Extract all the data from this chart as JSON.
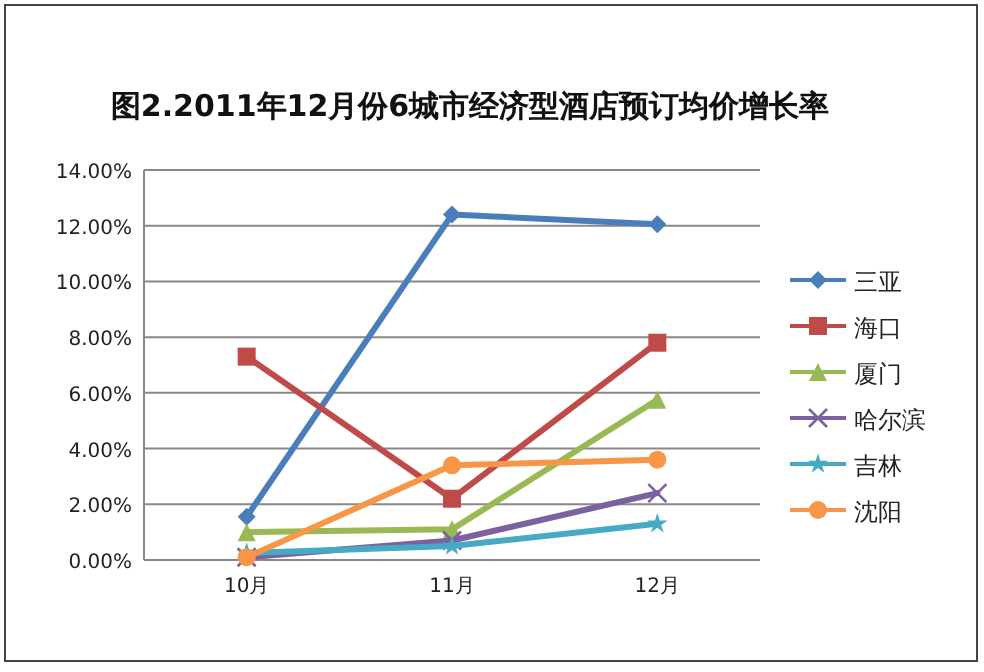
{
  "chart_data": {
    "type": "line",
    "title": "图2.2011年12月份6城市经济型酒店预订均价增长率",
    "categories": [
      "10月",
      "11月",
      "12月"
    ],
    "series": [
      {
        "name": "三亚",
        "color": "#4a7ebb",
        "marker": "diamond",
        "values": [
          1.55,
          12.4,
          12.05
        ]
      },
      {
        "name": "海口",
        "color": "#be4b48",
        "marker": "square",
        "values": [
          7.3,
          2.2,
          7.8
        ]
      },
      {
        "name": "厦门",
        "color": "#98b954",
        "marker": "triangle",
        "values": [
          1.0,
          1.1,
          5.75
        ]
      },
      {
        "name": "哈尔滨",
        "color": "#7d60a0",
        "marker": "cross",
        "values": [
          0.1,
          0.7,
          2.4
        ]
      },
      {
        "name": "吉林",
        "color": "#46aac5",
        "marker": "star",
        "values": [
          0.25,
          0.5,
          1.3
        ]
      },
      {
        "name": "沈阳",
        "color": "#f79646",
        "marker": "circle",
        "values": [
          0.1,
          3.4,
          3.6
        ]
      }
    ],
    "ylim": [
      0,
      14
    ],
    "yticks": [
      {
        "value": 0,
        "label": "0.00%"
      },
      {
        "value": 2,
        "label": "2.00%"
      },
      {
        "value": 4,
        "label": "4.00%"
      },
      {
        "value": 6,
        "label": "6.00%"
      },
      {
        "value": 8,
        "label": "8.00%"
      },
      {
        "value": 10,
        "label": "10.00%"
      },
      {
        "value": 12,
        "label": "12.00%"
      },
      {
        "value": 14,
        "label": "14.00%"
      }
    ],
    "grid": "y",
    "legend": "right"
  }
}
